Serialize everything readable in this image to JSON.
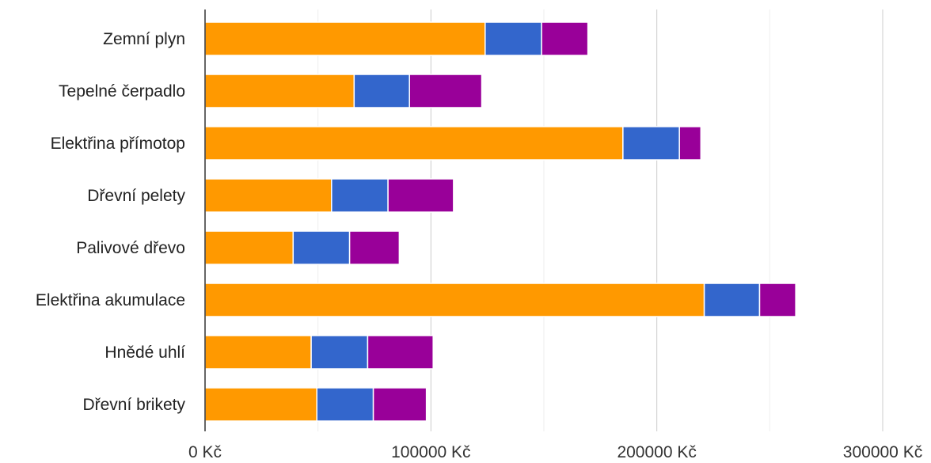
{
  "chart_data": {
    "type": "bar",
    "orientation": "horizontal",
    "stacked": true,
    "categories": [
      "Zemní plyn",
      "Tepelné čerpadlo",
      "Elektřina přímotop",
      "Dřevní pelety",
      "Palivové dřevo",
      "Elektřina akumulace",
      "Hnědé uhlí",
      "Dřevní brikety"
    ],
    "series": [
      {
        "color": "#ff9900",
        "values": [
          124000,
          66000,
          185000,
          56000,
          39000,
          221000,
          47000,
          49500
        ]
      },
      {
        "color": "#3366cc",
        "values": [
          25000,
          24500,
          25000,
          25000,
          25000,
          24500,
          25000,
          25000
        ]
      },
      {
        "color": "#990099",
        "values": [
          20500,
          32000,
          9500,
          29000,
          22000,
          16000,
          29000,
          23500
        ]
      }
    ],
    "xlim": [
      0,
      300000
    ],
    "xticks": [
      0,
      100000,
      200000,
      300000
    ],
    "xtick_labels": [
      "0 Kč",
      "100000 Kč",
      "200000 Kč",
      "300000 Kč"
    ],
    "minor_gridlines": [
      50000,
      150000,
      250000
    ],
    "grid": true,
    "legend": "none",
    "title": "",
    "xlabel": "",
    "ylabel": ""
  }
}
